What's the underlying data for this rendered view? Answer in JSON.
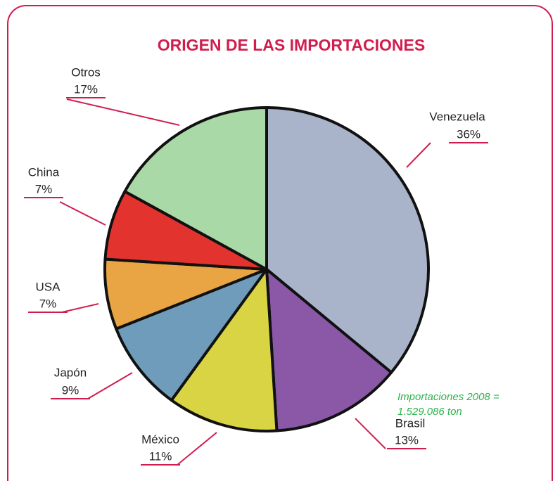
{
  "chart_data": {
    "type": "pie",
    "title": "ORIGEN DE LAS IMPORTACIONES",
    "categories": [
      "Venezuela",
      "Brasil",
      "México",
      "Japón",
      "USA",
      "China",
      "Otros"
    ],
    "values": [
      36,
      13,
      11,
      9,
      7,
      7,
      17
    ],
    "value_labels": [
      "36%",
      "13%",
      "11%",
      "9%",
      "7%",
      "7%",
      "17%"
    ],
    "colors": [
      "#a9b4cb",
      "#8a58a6",
      "#d9d443",
      "#6e9cba",
      "#e9a443",
      "#e2332f",
      "#a9d9a6"
    ],
    "annotation": [
      "Importaciones 2008 =",
      "1.529.086 ton"
    ]
  }
}
